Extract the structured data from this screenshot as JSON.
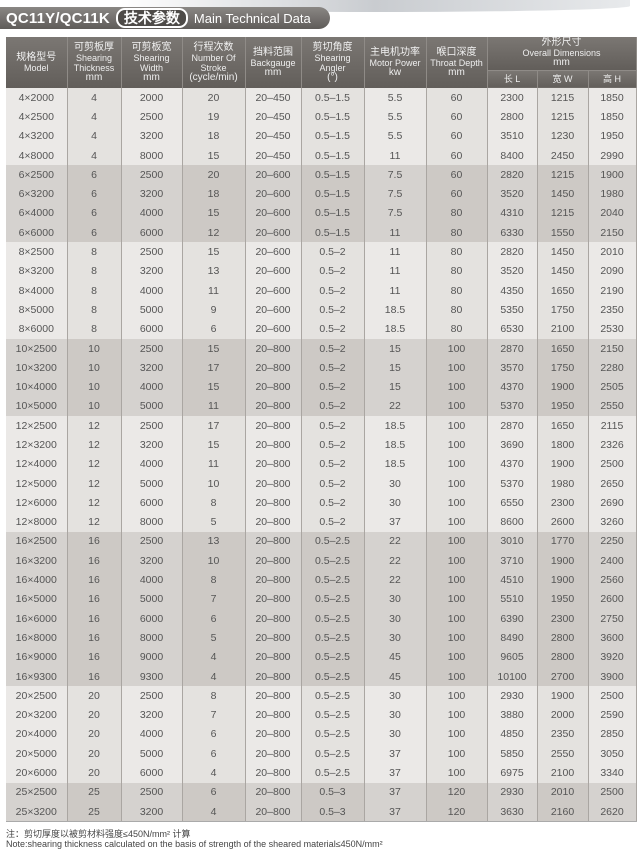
{
  "title": {
    "model": "QC11Y/QC11K",
    "cn": "技术参数",
    "en": "Main Technical Data"
  },
  "headers": {
    "model": {
      "cn": "规格型号",
      "en": "Model"
    },
    "thickness": {
      "cn": "可剪板厚",
      "en": "Shearing Thickness",
      "unit": "mm"
    },
    "width": {
      "cn": "可剪板宽",
      "en": "Shearing Width",
      "unit": "mm"
    },
    "stroke": {
      "cn": "行程次数",
      "en": "Number Of Stroke",
      "unit": "(cycle/min)"
    },
    "backgauge": {
      "cn": "挡料范围",
      "en": "Backgauge",
      "unit": "mm"
    },
    "angle": {
      "cn": "剪切角度",
      "en": "Shearing Angler",
      "unit": "(°)"
    },
    "motor": {
      "cn": "主电机功率",
      "en": "Motor Power",
      "unit": "kw"
    },
    "throat": {
      "cn": "喉口深度",
      "en": "Throat Depth",
      "unit": "mm"
    },
    "dims": {
      "cn": "外形尺寸",
      "en": "Overall Dimensions",
      "unit": "mm",
      "l": "长 L",
      "w": "宽 W",
      "h": "高 H"
    }
  },
  "rows": [
    [
      "4×2000",
      "4",
      "2000",
      "20",
      "20–450",
      "0.5–1.5",
      "5.5",
      "60",
      "2300",
      "1215",
      "1850"
    ],
    [
      "4×2500",
      "4",
      "2500",
      "19",
      "20–450",
      "0.5–1.5",
      "5.5",
      "60",
      "2800",
      "1215",
      "1850"
    ],
    [
      "4×3200",
      "4",
      "3200",
      "18",
      "20–450",
      "0.5–1.5",
      "5.5",
      "60",
      "3510",
      "1230",
      "1950"
    ],
    [
      "4×8000",
      "4",
      "8000",
      "15",
      "20–450",
      "0.5–1.5",
      "11",
      "60",
      "8400",
      "2450",
      "2990"
    ],
    [
      "6×2500",
      "6",
      "2500",
      "20",
      "20–600",
      "0.5–1.5",
      "7.5",
      "60",
      "2820",
      "1215",
      "1900"
    ],
    [
      "6×3200",
      "6",
      "3200",
      "18",
      "20–600",
      "0.5–1.5",
      "7.5",
      "60",
      "3520",
      "1450",
      "1980"
    ],
    [
      "6×4000",
      "6",
      "4000",
      "15",
      "20–600",
      "0.5–1.5",
      "7.5",
      "80",
      "4310",
      "1215",
      "2040"
    ],
    [
      "6×6000",
      "6",
      "6000",
      "12",
      "20–600",
      "0.5–1.5",
      "11",
      "80",
      "6330",
      "1550",
      "2150"
    ],
    [
      "8×2500",
      "8",
      "2500",
      "15",
      "20–600",
      "0.5–2",
      "11",
      "80",
      "2820",
      "1450",
      "2010"
    ],
    [
      "8×3200",
      "8",
      "3200",
      "13",
      "20–600",
      "0.5–2",
      "11",
      "80",
      "3520",
      "1450",
      "2090"
    ],
    [
      "8×4000",
      "8",
      "4000",
      "11",
      "20–600",
      "0.5–2",
      "11",
      "80",
      "4350",
      "1650",
      "2190"
    ],
    [
      "8×5000",
      "8",
      "5000",
      "9",
      "20–600",
      "0.5–2",
      "18.5",
      "80",
      "5350",
      "1750",
      "2350"
    ],
    [
      "8×6000",
      "8",
      "6000",
      "6",
      "20–600",
      "0.5–2",
      "18.5",
      "80",
      "6530",
      "2100",
      "2530"
    ],
    [
      "10×2500",
      "10",
      "2500",
      "15",
      "20–800",
      "0.5–2",
      "15",
      "100",
      "2870",
      "1650",
      "2150"
    ],
    [
      "10×3200",
      "10",
      "3200",
      "17",
      "20–800",
      "0.5–2",
      "15",
      "100",
      "3570",
      "1750",
      "2280"
    ],
    [
      "10×4000",
      "10",
      "4000",
      "15",
      "20–800",
      "0.5–2",
      "15",
      "100",
      "4370",
      "1900",
      "2505"
    ],
    [
      "10×5000",
      "10",
      "5000",
      "11",
      "20–800",
      "0.5–2",
      "22",
      "100",
      "5370",
      "1950",
      "2550"
    ],
    [
      "12×2500",
      "12",
      "2500",
      "17",
      "20–800",
      "0.5–2",
      "18.5",
      "100",
      "2870",
      "1650",
      "2115"
    ],
    [
      "12×3200",
      "12",
      "3200",
      "15",
      "20–800",
      "0.5–2",
      "18.5",
      "100",
      "3690",
      "1800",
      "2326"
    ],
    [
      "12×4000",
      "12",
      "4000",
      "11",
      "20–800",
      "0.5–2",
      "18.5",
      "100",
      "4370",
      "1900",
      "2500"
    ],
    [
      "12×5000",
      "12",
      "5000",
      "10",
      "20–800",
      "0.5–2",
      "30",
      "100",
      "5370",
      "1980",
      "2650"
    ],
    [
      "12×6000",
      "12",
      "6000",
      "8",
      "20–800",
      "0.5–2",
      "30",
      "100",
      "6550",
      "2300",
      "2690"
    ],
    [
      "12×8000",
      "12",
      "8000",
      "5",
      "20–800",
      "0.5–2",
      "37",
      "100",
      "8600",
      "2600",
      "3260"
    ],
    [
      "16×2500",
      "16",
      "2500",
      "13",
      "20–800",
      "0.5–2.5",
      "22",
      "100",
      "3010",
      "1770",
      "2250"
    ],
    [
      "16×3200",
      "16",
      "3200",
      "10",
      "20–800",
      "0.5–2.5",
      "22",
      "100",
      "3710",
      "1900",
      "2400"
    ],
    [
      "16×4000",
      "16",
      "4000",
      "8",
      "20–800",
      "0.5–2.5",
      "22",
      "100",
      "4510",
      "1900",
      "2560"
    ],
    [
      "16×5000",
      "16",
      "5000",
      "7",
      "20–800",
      "0.5–2.5",
      "30",
      "100",
      "5510",
      "1950",
      "2600"
    ],
    [
      "16×6000",
      "16",
      "6000",
      "6",
      "20–800",
      "0.5–2.5",
      "30",
      "100",
      "6390",
      "2300",
      "2750"
    ],
    [
      "16×8000",
      "16",
      "8000",
      "5",
      "20–800",
      "0.5–2.5",
      "30",
      "100",
      "8490",
      "2800",
      "3600"
    ],
    [
      "16×9000",
      "16",
      "9000",
      "4",
      "20–800",
      "0.5–2.5",
      "45",
      "100",
      "9605",
      "2800",
      "3920"
    ],
    [
      "16×9300",
      "16",
      "9300",
      "4",
      "20–800",
      "0.5–2.5",
      "45",
      "100",
      "10100",
      "2700",
      "3900"
    ],
    [
      "20×2500",
      "20",
      "2500",
      "8",
      "20–800",
      "0.5–2.5",
      "30",
      "100",
      "2930",
      "1900",
      "2500"
    ],
    [
      "20×3200",
      "20",
      "3200",
      "7",
      "20–800",
      "0.5–2.5",
      "30",
      "100",
      "3880",
      "2000",
      "2590"
    ],
    [
      "20×4000",
      "20",
      "4000",
      "6",
      "20–800",
      "0.5–2.5",
      "30",
      "100",
      "4850",
      "2350",
      "2850"
    ],
    [
      "20×5000",
      "20",
      "5000",
      "6",
      "20–800",
      "0.5–2.5",
      "37",
      "100",
      "5850",
      "2550",
      "3050"
    ],
    [
      "20×6000",
      "20",
      "6000",
      "4",
      "20–800",
      "0.5–2.5",
      "37",
      "100",
      "6975",
      "2100",
      "3340"
    ],
    [
      "25×2500",
      "25",
      "2500",
      "6",
      "20–800",
      "0.5–3",
      "37",
      "120",
      "2930",
      "2010",
      "2500"
    ],
    [
      "25×3200",
      "25",
      "3200",
      "4",
      "20–800",
      "0.5–3",
      "37",
      "120",
      "3630",
      "2160",
      "2620"
    ]
  ],
  "notes": {
    "cn": "注：剪切厚度以被剪材料强度≤450N/mm² 计算",
    "en": "Note:shearing thickness calculated on the basis of strength of the sheared material≤450N/mm²"
  }
}
